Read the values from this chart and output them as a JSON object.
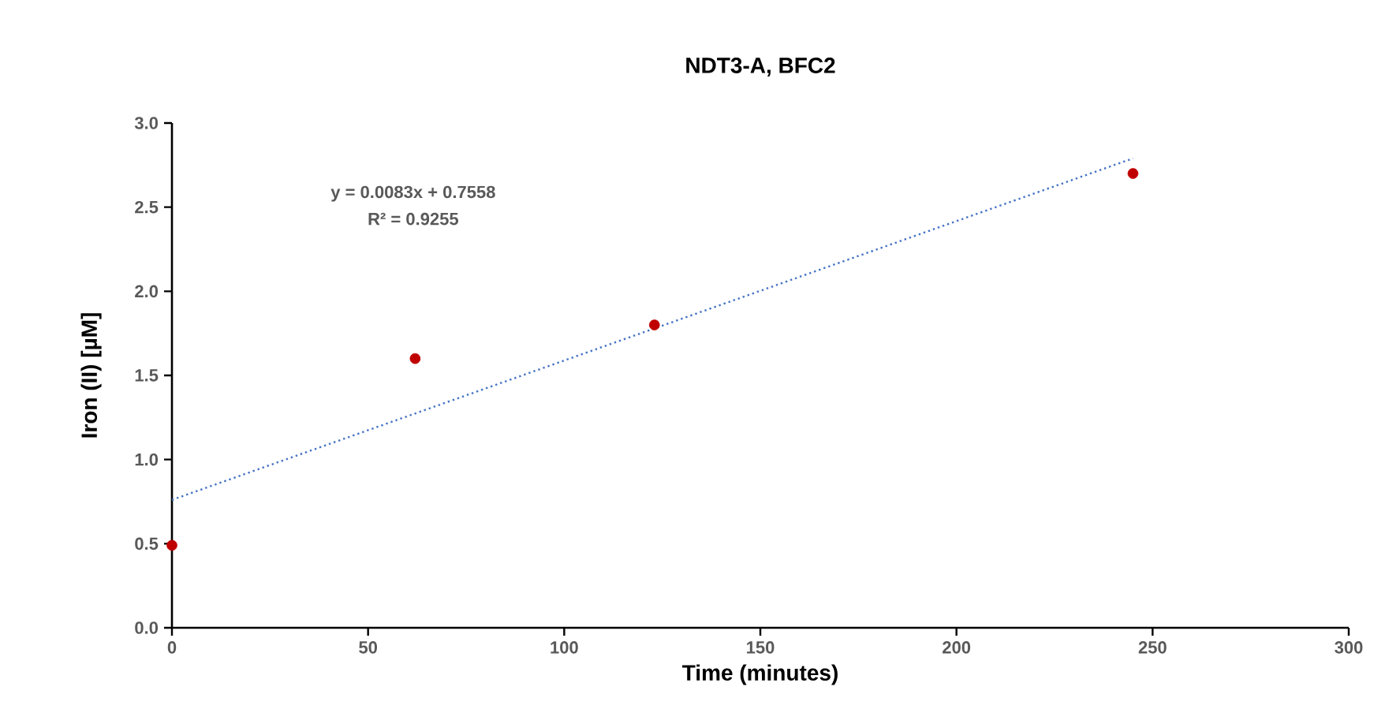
{
  "chart_data": {
    "type": "scatter",
    "title": "NDT3-A, BFC2",
    "xlabel": "Time (minutes)",
    "ylabel": "Iron (II) [µM]",
    "xlim": [
      0,
      300
    ],
    "xticks": [
      0,
      50,
      100,
      150,
      200,
      250,
      300
    ],
    "ylim": [
      0,
      3
    ],
    "yticks": [
      {
        "value": 0,
        "label": "0.0"
      },
      {
        "value": 0.5,
        "label": "0.5"
      },
      {
        "value": 1,
        "label": "1.0"
      },
      {
        "value": 1.5,
        "label": "1.5"
      },
      {
        "value": 2,
        "label": "2.0"
      },
      {
        "value": 2.5,
        "label": "2.5"
      },
      {
        "value": 3,
        "label": "3.0"
      }
    ],
    "series": [
      {
        "color": "#c00000",
        "marker": "circle",
        "x": [
          0,
          62,
          123,
          245
        ],
        "values": [
          0.49,
          1.6,
          1.8,
          2.7
        ]
      },
      {
        "type": "line",
        "color": "#4472c4",
        "line_style": "dotted",
        "marker": "none",
        "x": [
          0,
          245
        ],
        "values": [
          0.76,
          2.79
        ]
      }
    ],
    "annotations": [
      "y = 0.0083x + 0.7558",
      "R² = 0.9255"
    ],
    "grid": false
  }
}
